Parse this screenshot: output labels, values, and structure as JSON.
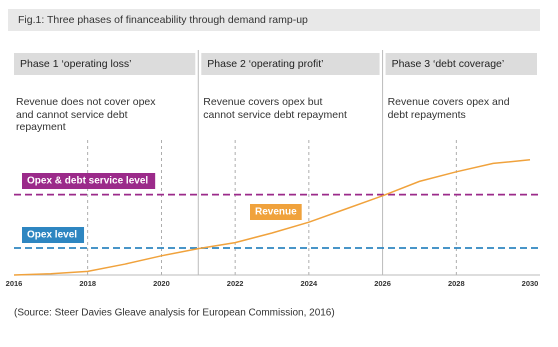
{
  "chart_data": {
    "type": "line",
    "title": "Fig.1: Three phases of financeability through demand ramp-up",
    "phases": [
      {
        "label": "Phase 1 ‘operating loss’",
        "description": "Revenue does not cover opex and cannot service debt repayment"
      },
      {
        "label": "Phase 2 ‘operating profit’",
        "description": "Revenue covers opex but cannot service debt repayment"
      },
      {
        "label": "Phase 3 ‘debt coverage’",
        "description": "Revenue covers opex and debt repayments"
      }
    ],
    "phase_boundaries": [
      2021,
      2026
    ],
    "x": [
      2016,
      2017,
      2018,
      2019,
      2020,
      2021,
      2022,
      2023,
      2024,
      2025,
      2026,
      2027,
      2028,
      2029,
      2030
    ],
    "series": [
      {
        "name": "Revenue",
        "color": "#f0a23c",
        "values": [
          0,
          1,
          3,
          9,
          16,
          22,
          27,
          35,
          44,
          55,
          66,
          78,
          86,
          93,
          96
        ]
      }
    ],
    "reference_lines": [
      {
        "name": "Opex & debt service level",
        "color": "#9b2a8a",
        "value": 67
      },
      {
        "name": "Opex level",
        "color": "#2e86c1",
        "value": 22.5
      }
    ],
    "xlim": [
      2016,
      2030
    ],
    "xticks": [
      2016,
      2018,
      2020,
      2022,
      2024,
      2026,
      2028,
      2030
    ],
    "ylim": [
      0,
      100
    ],
    "source": "(Source: Steer Davies Gleave analysis for European Commission, 2016)"
  }
}
